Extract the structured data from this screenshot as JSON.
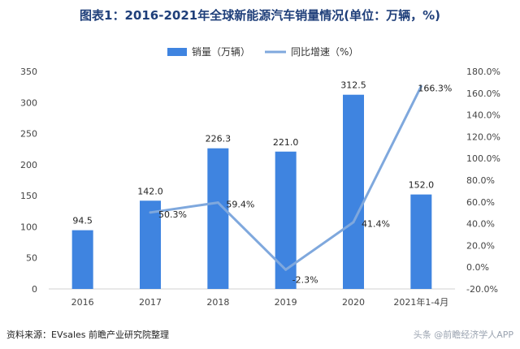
{
  "page": {
    "title": "图表1：2016-2021年全球新能源汽车销量情况(单位：万辆，%)",
    "source": "资料来源：EVsales 前瞻产业研究院整理",
    "watermark_bottom": "头条 @前瞻经济学人APP"
  },
  "chart_data": {
    "type": "bar",
    "categories": [
      "2016",
      "2017",
      "2018",
      "2019",
      "2020",
      "2021年1-4月"
    ],
    "series": [
      {
        "name": "销量（万辆）",
        "type": "bar",
        "axis": "left",
        "values": [
          94.5,
          142.0,
          226.3,
          221.0,
          312.5,
          152.0
        ],
        "labels": [
          "94.5",
          "142.0",
          "226.3",
          "221.0",
          "312.5",
          "152.0"
        ],
        "color": "#3f84e0"
      },
      {
        "name": "同比增速（%）",
        "type": "line",
        "axis": "right",
        "values": [
          null,
          50.3,
          59.4,
          -2.3,
          41.4,
          166.3
        ],
        "labels": [
          "",
          "50.3%",
          "59.4%",
          "-2.3%",
          "41.4%",
          "166.3%"
        ],
        "color": "#7fa8dd"
      }
    ],
    "y_left": {
      "min": 0,
      "max": 350,
      "ticks": [
        0,
        50,
        100,
        150,
        200,
        250,
        300,
        350
      ],
      "tick_labels": [
        "0",
        "50",
        "100",
        "150",
        "200",
        "250",
        "300",
        "350"
      ]
    },
    "y_right": {
      "min": -20,
      "max": 180,
      "ticks": [
        -20,
        0,
        20,
        40,
        60,
        80,
        100,
        120,
        140,
        160,
        180
      ],
      "tick_labels": [
        "-20.0%",
        "0.0%",
        "20.0%",
        "40.0%",
        "60.0%",
        "80.0%",
        "100.0%",
        "120.0%",
        "140.0%",
        "160.0%",
        "180.0%"
      ]
    },
    "grid": false,
    "legend": "top-center"
  }
}
